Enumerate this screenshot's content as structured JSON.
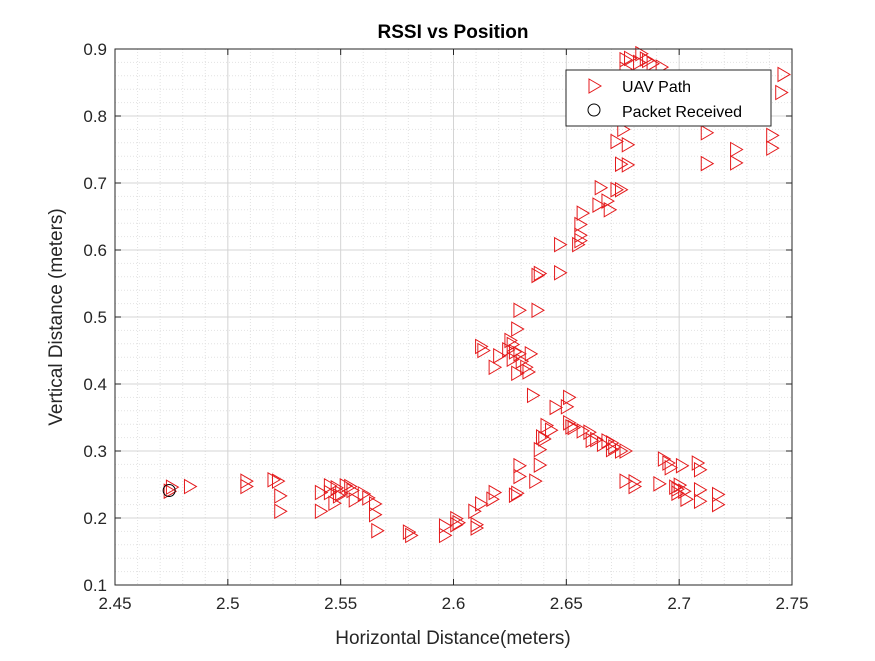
{
  "chart_data": {
    "type": "scatter",
    "title": "RSSI vs Position",
    "xlabel": "Horizontal Distance(meters)",
    "ylabel": "Vertical Distance (meters)",
    "xlim": [
      2.45,
      2.75
    ],
    "ylim": [
      0.1,
      0.9
    ],
    "xticks": [
      2.45,
      2.5,
      2.55,
      2.6,
      2.65,
      2.7,
      2.75
    ],
    "xtick_labels": [
      "2.45",
      "2.5",
      "2.55",
      "2.6",
      "2.65",
      "2.7",
      "2.75"
    ],
    "yticks": [
      0.1,
      0.2,
      0.3,
      0.4,
      0.5,
      0.6,
      0.7,
      0.8,
      0.9
    ],
    "ytick_labels": [
      "0.1",
      "0.2",
      "0.3",
      "0.4",
      "0.5",
      "0.6",
      "0.7",
      "0.8",
      "0.9"
    ],
    "grid": true,
    "minor_grid": true,
    "legend_position": "top-right",
    "series": [
      {
        "name": "UAV Path",
        "marker": "triangle-right",
        "color": "#e41a1c",
        "points": [
          [
            2.474,
            0.24
          ],
          [
            2.475,
            0.246
          ],
          [
            2.483,
            0.247
          ],
          [
            2.508,
            0.247
          ],
          [
            2.508,
            0.255
          ],
          [
            2.52,
            0.257
          ],
          [
            2.522,
            0.255
          ],
          [
            2.523,
            0.233
          ],
          [
            2.523,
            0.21
          ],
          [
            2.541,
            0.238
          ],
          [
            2.541,
            0.21
          ],
          [
            2.545,
            0.248
          ],
          [
            2.545,
            0.238
          ],
          [
            2.547,
            0.222
          ],
          [
            2.548,
            0.245
          ],
          [
            2.549,
            0.233
          ],
          [
            2.55,
            0.237
          ],
          [
            2.552,
            0.248
          ],
          [
            2.554,
            0.247
          ],
          [
            2.555,
            0.241
          ],
          [
            2.556,
            0.227
          ],
          [
            2.56,
            0.236
          ],
          [
            2.562,
            0.23
          ],
          [
            2.565,
            0.221
          ],
          [
            2.565,
            0.205
          ],
          [
            2.566,
            0.181
          ],
          [
            2.58,
            0.179
          ],
          [
            2.581,
            0.174
          ],
          [
            2.596,
            0.188
          ],
          [
            2.596,
            0.174
          ],
          [
            2.601,
            0.199
          ],
          [
            2.601,
            0.19
          ],
          [
            2.602,
            0.193
          ],
          [
            2.609,
            0.21
          ],
          [
            2.61,
            0.19
          ],
          [
            2.61,
            0.185
          ],
          [
            2.612,
            0.221
          ],
          [
            2.617,
            0.228
          ],
          [
            2.618,
            0.238
          ],
          [
            2.627,
            0.234
          ],
          [
            2.628,
            0.237
          ],
          [
            2.629,
            0.262
          ],
          [
            2.629,
            0.278
          ],
          [
            2.636,
            0.255
          ],
          [
            2.638,
            0.279
          ],
          [
            2.638,
            0.302
          ],
          [
            2.639,
            0.321
          ],
          [
            2.64,
            0.318
          ],
          [
            2.641,
            0.338
          ],
          [
            2.643,
            0.331
          ],
          [
            2.645,
            0.365
          ],
          [
            2.65,
            0.366
          ],
          [
            2.651,
            0.38
          ],
          [
            2.651,
            0.342
          ],
          [
            2.652,
            0.336
          ],
          [
            2.653,
            0.335
          ],
          [
            2.657,
            0.33
          ],
          [
            2.66,
            0.328
          ],
          [
            2.661,
            0.316
          ],
          [
            2.663,
            0.317
          ],
          [
            2.666,
            0.31
          ],
          [
            2.668,
            0.315
          ],
          [
            2.67,
            0.312
          ],
          [
            2.67,
            0.302
          ],
          [
            2.671,
            0.306
          ],
          [
            2.674,
            0.3
          ],
          [
            2.676,
            0.3
          ],
          [
            2.676,
            0.255
          ],
          [
            2.68,
            0.254
          ],
          [
            2.68,
            0.247
          ],
          [
            2.691,
            0.251
          ],
          [
            2.693,
            0.288
          ],
          [
            2.695,
            0.282
          ],
          [
            2.696,
            0.275
          ],
          [
            2.698,
            0.246
          ],
          [
            2.699,
            0.243
          ],
          [
            2.699,
            0.237
          ],
          [
            2.7,
            0.249
          ],
          [
            2.701,
            0.278
          ],
          [
            2.702,
            0.24
          ],
          [
            2.703,
            0.228
          ],
          [
            2.708,
            0.282
          ],
          [
            2.709,
            0.272
          ],
          [
            2.709,
            0.242
          ],
          [
            2.709,
            0.225
          ],
          [
            2.717,
            0.235
          ],
          [
            2.717,
            0.22
          ],
          [
            2.612,
            0.456
          ],
          [
            2.613,
            0.45
          ],
          [
            2.618,
            0.425
          ],
          [
            2.62,
            0.442
          ],
          [
            2.624,
            0.451
          ],
          [
            2.625,
            0.465
          ],
          [
            2.626,
            0.459
          ],
          [
            2.626,
            0.437
          ],
          [
            2.627,
            0.448
          ],
          [
            2.628,
            0.416
          ],
          [
            2.629,
            0.445
          ],
          [
            2.63,
            0.434
          ],
          [
            2.632,
            0.425
          ],
          [
            2.633,
            0.418
          ],
          [
            2.634,
            0.445
          ],
          [
            2.635,
            0.383
          ],
          [
            2.628,
            0.482
          ],
          [
            2.629,
            0.51
          ],
          [
            2.637,
            0.51
          ],
          [
            2.637,
            0.562
          ],
          [
            2.638,
            0.565
          ],
          [
            2.647,
            0.566
          ],
          [
            2.647,
            0.608
          ],
          [
            2.655,
            0.608
          ],
          [
            2.656,
            0.614
          ],
          [
            2.656,
            0.622
          ],
          [
            2.656,
            0.638
          ],
          [
            2.657,
            0.655
          ],
          [
            2.664,
            0.667
          ],
          [
            2.665,
            0.693
          ],
          [
            2.668,
            0.673
          ],
          [
            2.669,
            0.66
          ],
          [
            2.672,
            0.69
          ],
          [
            2.672,
            0.762
          ],
          [
            2.674,
            0.728
          ],
          [
            2.674,
            0.69
          ],
          [
            2.675,
            0.78
          ],
          [
            2.675,
            0.798
          ],
          [
            2.676,
            0.87
          ],
          [
            2.677,
            0.757
          ],
          [
            2.677,
            0.727
          ],
          [
            2.676,
            0.884
          ],
          [
            2.678,
            0.886
          ],
          [
            2.682,
            0.88
          ],
          [
            2.683,
            0.893
          ],
          [
            2.685,
            0.885
          ],
          [
            2.686,
            0.883
          ],
          [
            2.688,
            0.878
          ],
          [
            2.692,
            0.873
          ],
          [
            2.712,
            0.775
          ],
          [
            2.712,
            0.729
          ],
          [
            2.725,
            0.75
          ],
          [
            2.725,
            0.73
          ],
          [
            2.741,
            0.771
          ],
          [
            2.741,
            0.752
          ],
          [
            2.745,
            0.835
          ],
          [
            2.746,
            0.862
          ]
        ]
      },
      {
        "name": "Packet Received",
        "marker": "circle",
        "color": "#000000",
        "points": [
          [
            2.474,
            0.241
          ]
        ]
      }
    ]
  }
}
